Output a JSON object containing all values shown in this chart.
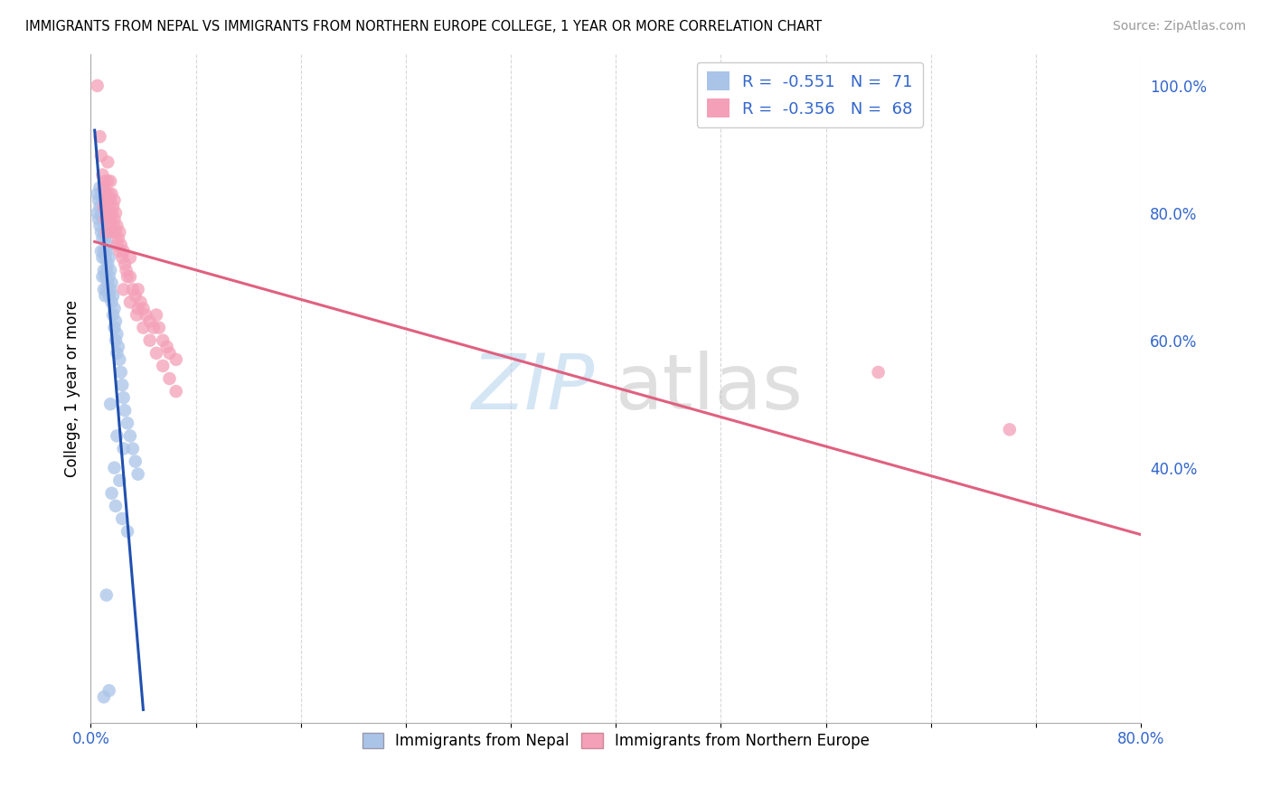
{
  "title": "IMMIGRANTS FROM NEPAL VS IMMIGRANTS FROM NORTHERN EUROPE COLLEGE, 1 YEAR OR MORE CORRELATION CHART",
  "source": "Source: ZipAtlas.com",
  "ylabel": "College, 1 year or more",
  "legend_nepal": "Immigrants from Nepal",
  "legend_northern_europe": "Immigrants from Northern Europe",
  "legend_r_nepal": "-0.551",
  "legend_n_nepal": "71",
  "legend_r_northern": "-0.356",
  "legend_n_northern": "68",
  "color_nepal": "#aac4e8",
  "color_northern": "#f4a0b8",
  "color_nepal_line": "#2050b0",
  "color_northern_line": "#e06080",
  "xlim": [
    0.0,
    0.8
  ],
  "ylim": [
    0.0,
    1.05
  ],
  "yticks_right": [
    1.0,
    0.8,
    0.6,
    0.4
  ],
  "ytick_right_labels": [
    "100.0%",
    "80.0%",
    "60.0%",
    "40.0%"
  ],
  "nepal_points": [
    [
      0.005,
      0.83
    ],
    [
      0.005,
      0.8
    ],
    [
      0.006,
      0.82
    ],
    [
      0.006,
      0.79
    ],
    [
      0.007,
      0.84
    ],
    [
      0.007,
      0.81
    ],
    [
      0.007,
      0.78
    ],
    [
      0.008,
      0.83
    ],
    [
      0.008,
      0.8
    ],
    [
      0.008,
      0.77
    ],
    [
      0.008,
      0.74
    ],
    [
      0.009,
      0.82
    ],
    [
      0.009,
      0.79
    ],
    [
      0.009,
      0.76
    ],
    [
      0.009,
      0.73
    ],
    [
      0.009,
      0.7
    ],
    [
      0.01,
      0.8
    ],
    [
      0.01,
      0.77
    ],
    [
      0.01,
      0.74
    ],
    [
      0.01,
      0.71
    ],
    [
      0.01,
      0.68
    ],
    [
      0.011,
      0.79
    ],
    [
      0.011,
      0.76
    ],
    [
      0.011,
      0.73
    ],
    [
      0.011,
      0.7
    ],
    [
      0.011,
      0.67
    ],
    [
      0.012,
      0.77
    ],
    [
      0.012,
      0.74
    ],
    [
      0.012,
      0.71
    ],
    [
      0.012,
      0.68
    ],
    [
      0.013,
      0.75
    ],
    [
      0.013,
      0.72
    ],
    [
      0.013,
      0.69
    ],
    [
      0.014,
      0.73
    ],
    [
      0.014,
      0.7
    ],
    [
      0.014,
      0.67
    ],
    [
      0.015,
      0.71
    ],
    [
      0.015,
      0.68
    ],
    [
      0.016,
      0.69
    ],
    [
      0.016,
      0.66
    ],
    [
      0.017,
      0.67
    ],
    [
      0.017,
      0.64
    ],
    [
      0.018,
      0.65
    ],
    [
      0.018,
      0.62
    ],
    [
      0.019,
      0.63
    ],
    [
      0.019,
      0.6
    ],
    [
      0.02,
      0.61
    ],
    [
      0.02,
      0.58
    ],
    [
      0.021,
      0.59
    ],
    [
      0.022,
      0.57
    ],
    [
      0.023,
      0.55
    ],
    [
      0.024,
      0.53
    ],
    [
      0.025,
      0.51
    ],
    [
      0.026,
      0.49
    ],
    [
      0.028,
      0.47
    ],
    [
      0.03,
      0.45
    ],
    [
      0.032,
      0.43
    ],
    [
      0.034,
      0.41
    ],
    [
      0.036,
      0.39
    ],
    [
      0.015,
      0.5
    ],
    [
      0.02,
      0.45
    ],
    [
      0.025,
      0.43
    ],
    [
      0.018,
      0.4
    ],
    [
      0.022,
      0.38
    ],
    [
      0.016,
      0.36
    ],
    [
      0.019,
      0.34
    ],
    [
      0.024,
      0.32
    ],
    [
      0.028,
      0.3
    ],
    [
      0.012,
      0.2
    ],
    [
      0.014,
      0.05
    ],
    [
      0.01,
      0.04
    ]
  ],
  "northern_points": [
    [
      0.005,
      1.0
    ],
    [
      0.007,
      0.92
    ],
    [
      0.008,
      0.89
    ],
    [
      0.009,
      0.86
    ],
    [
      0.01,
      0.84
    ],
    [
      0.01,
      0.81
    ],
    [
      0.011,
      0.85
    ],
    [
      0.011,
      0.82
    ],
    [
      0.011,
      0.79
    ],
    [
      0.012,
      0.83
    ],
    [
      0.012,
      0.8
    ],
    [
      0.012,
      0.77
    ],
    [
      0.013,
      0.88
    ],
    [
      0.013,
      0.85
    ],
    [
      0.013,
      0.82
    ],
    [
      0.014,
      0.83
    ],
    [
      0.014,
      0.8
    ],
    [
      0.015,
      0.85
    ],
    [
      0.015,
      0.82
    ],
    [
      0.015,
      0.79
    ],
    [
      0.016,
      0.83
    ],
    [
      0.016,
      0.8
    ],
    [
      0.016,
      0.77
    ],
    [
      0.017,
      0.81
    ],
    [
      0.017,
      0.78
    ],
    [
      0.018,
      0.82
    ],
    [
      0.018,
      0.79
    ],
    [
      0.019,
      0.8
    ],
    [
      0.019,
      0.77
    ],
    [
      0.02,
      0.78
    ],
    [
      0.02,
      0.75
    ],
    [
      0.021,
      0.76
    ],
    [
      0.022,
      0.77
    ],
    [
      0.022,
      0.74
    ],
    [
      0.023,
      0.75
    ],
    [
      0.024,
      0.73
    ],
    [
      0.025,
      0.74
    ],
    [
      0.026,
      0.72
    ],
    [
      0.027,
      0.71
    ],
    [
      0.028,
      0.7
    ],
    [
      0.03,
      0.73
    ],
    [
      0.03,
      0.7
    ],
    [
      0.032,
      0.68
    ],
    [
      0.034,
      0.67
    ],
    [
      0.036,
      0.68
    ],
    [
      0.036,
      0.65
    ],
    [
      0.038,
      0.66
    ],
    [
      0.04,
      0.65
    ],
    [
      0.042,
      0.64
    ],
    [
      0.045,
      0.63
    ],
    [
      0.048,
      0.62
    ],
    [
      0.05,
      0.64
    ],
    [
      0.052,
      0.62
    ],
    [
      0.055,
      0.6
    ],
    [
      0.058,
      0.59
    ],
    [
      0.06,
      0.58
    ],
    [
      0.065,
      0.57
    ],
    [
      0.025,
      0.68
    ],
    [
      0.03,
      0.66
    ],
    [
      0.035,
      0.64
    ],
    [
      0.04,
      0.62
    ],
    [
      0.045,
      0.6
    ],
    [
      0.05,
      0.58
    ],
    [
      0.055,
      0.56
    ],
    [
      0.06,
      0.54
    ],
    [
      0.065,
      0.52
    ],
    [
      0.6,
      0.55
    ],
    [
      0.7,
      0.46
    ]
  ],
  "nepal_line_x": [
    0.003,
    0.04
  ],
  "nepal_line_y": [
    0.93,
    0.02
  ],
  "northern_line_x": [
    0.003,
    0.8
  ],
  "northern_line_y": [
    0.755,
    0.295
  ]
}
